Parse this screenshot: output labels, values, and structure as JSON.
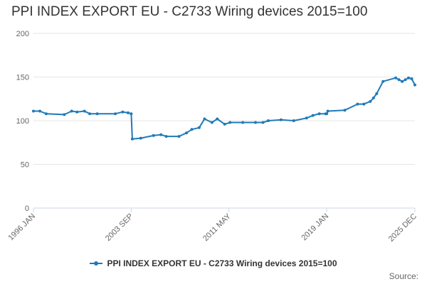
{
  "chart_data": {
    "type": "line",
    "title": "PPI INDEX EXPORT EU - C2733 Wiring devices 2015=100",
    "xlabel": "",
    "ylabel": "",
    "ylim": [
      0,
      200
    ],
    "yticks": [
      0,
      50,
      100,
      150,
      200
    ],
    "xticks": [
      "1996 JAN",
      "2003 SEP",
      "2011 MAY",
      "2019 JAN",
      "2025 DEC"
    ],
    "grid": true,
    "legend_position": "bottom",
    "series": [
      {
        "name": "PPI INDEX EXPORT EU - C2733 Wiring devices 2015=100",
        "color": "#1f7ab8",
        "x": [
          "1996-01",
          "1996-07",
          "1997-01",
          "1998-06",
          "1999-01",
          "1999-06",
          "2000-01",
          "2000-06",
          "2001-01",
          "2002-06",
          "2003-01",
          "2003-06",
          "2003-09",
          "2003-10",
          "2004-06",
          "2005-06",
          "2006-01",
          "2006-06",
          "2007-06",
          "2008-01",
          "2008-06",
          "2009-01",
          "2009-06",
          "2010-01",
          "2010-06",
          "2011-01",
          "2011-06",
          "2012-06",
          "2013-06",
          "2014-01",
          "2014-06",
          "2015-06",
          "2016-06",
          "2017-06",
          "2017-12",
          "2018-06",
          "2018-12",
          "2019-01",
          "2019-02",
          "2020-06",
          "2021-06",
          "2021-12",
          "2022-06",
          "2022-09",
          "2022-12",
          "2023-06",
          "2024-06",
          "2024-09",
          "2024-12",
          "2025-03",
          "2025-06",
          "2025-09",
          "2025-12"
        ],
        "values": [
          111,
          111,
          108,
          107,
          111,
          110,
          111,
          108,
          108,
          108,
          110,
          109,
          108,
          79,
          80,
          83,
          84,
          82,
          82,
          86,
          90,
          92,
          102,
          98,
          102,
          96,
          98,
          98,
          98,
          98,
          100,
          101,
          100,
          103,
          106,
          108,
          108,
          108,
          111,
          112,
          119,
          119,
          122,
          126,
          131,
          145,
          149,
          147,
          145,
          147,
          149,
          148,
          141
        ]
      }
    ]
  },
  "source_label": "Source:"
}
